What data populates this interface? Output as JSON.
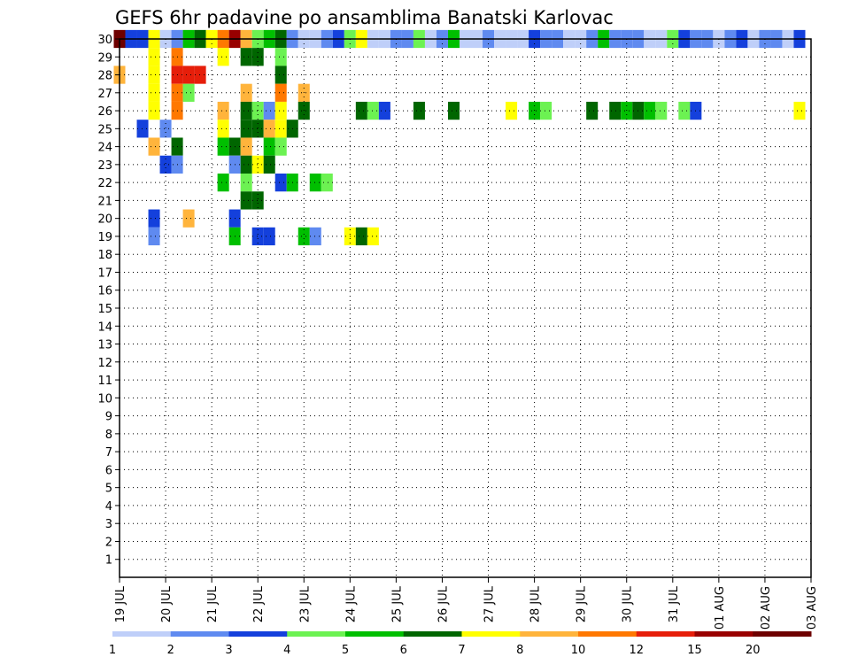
{
  "chart_data": {
    "type": "heatmap",
    "title": "GEFS 6hr padavine po ansamblima Banatski Karlovac",
    "members": [
      1,
      2,
      3,
      4,
      5,
      6,
      7,
      8,
      9,
      10,
      11,
      12,
      13,
      14,
      15,
      16,
      17,
      18,
      19,
      20,
      21,
      22,
      23,
      24,
      25,
      26,
      27,
      28,
      29,
      30
    ],
    "x_tick_labels": [
      "19 JUL",
      "20 JUL",
      "21 JUL",
      "22 JUL",
      "23 JUL",
      "24 JUL",
      "25 JUL",
      "26 JUL",
      "27 JUL",
      "28 JUL",
      "29 JUL",
      "30 JUL",
      "31 JUL",
      "01 AUG",
      "02 AUG",
      "03 AUG"
    ],
    "x_range_days": [
      0,
      15
    ],
    "y_range": [
      0,
      30
    ],
    "grid": true,
    "colorbar": {
      "colors": [
        "#bfcff9",
        "#5f8af0",
        "#1440dc",
        "#6cf252",
        "#00bf00",
        "#006600",
        "#ffff00",
        "#ffb43c",
        "#ff7800",
        "#e61e0a",
        "#990000",
        "#6e0000"
      ],
      "tick_labels": [
        "1",
        "2",
        "3",
        "4",
        "5",
        "6",
        "7",
        "8",
        "10",
        "12",
        "15",
        "20"
      ]
    },
    "cells": [
      [
        0.0,
        30,
        11
      ],
      [
        0.25,
        30,
        2
      ],
      [
        0.5,
        30,
        2
      ],
      [
        0.75,
        30,
        6
      ],
      [
        1.0,
        30,
        0
      ],
      [
        1.25,
        30,
        1
      ],
      [
        1.5,
        30,
        4
      ],
      [
        1.75,
        30,
        5
      ],
      [
        2.0,
        30,
        6
      ],
      [
        2.25,
        30,
        8
      ],
      [
        2.5,
        30,
        10
      ],
      [
        2.75,
        30,
        7
      ],
      [
        3.0,
        30,
        3
      ],
      [
        3.25,
        30,
        4
      ],
      [
        3.5,
        30,
        5
      ],
      [
        3.75,
        30,
        1
      ],
      [
        4.0,
        30,
        0
      ],
      [
        4.25,
        30,
        0
      ],
      [
        4.5,
        30,
        1
      ],
      [
        4.75,
        30,
        2
      ],
      [
        5.0,
        30,
        3
      ],
      [
        5.25,
        30,
        6
      ],
      [
        5.5,
        30,
        0
      ],
      [
        5.75,
        30,
        0
      ],
      [
        6.0,
        30,
        1
      ],
      [
        6.25,
        30,
        1
      ],
      [
        6.5,
        30,
        3
      ],
      [
        6.75,
        30,
        0
      ],
      [
        7.0,
        30,
        1
      ],
      [
        7.25,
        30,
        4
      ],
      [
        7.5,
        30,
        0
      ],
      [
        7.75,
        30,
        0
      ],
      [
        8.0,
        30,
        1
      ],
      [
        8.25,
        30,
        0
      ],
      [
        8.5,
        30,
        0
      ],
      [
        8.75,
        30,
        0
      ],
      [
        9.0,
        30,
        2
      ],
      [
        9.25,
        30,
        1
      ],
      [
        9.5,
        30,
        1
      ],
      [
        9.75,
        30,
        0
      ],
      [
        10.0,
        30,
        0
      ],
      [
        10.25,
        30,
        1
      ],
      [
        10.5,
        30,
        4
      ],
      [
        10.75,
        30,
        1
      ],
      [
        11.0,
        30,
        1
      ],
      [
        11.25,
        30,
        1
      ],
      [
        11.5,
        30,
        0
      ],
      [
        11.75,
        30,
        0
      ],
      [
        12.0,
        30,
        3
      ],
      [
        12.25,
        30,
        2
      ],
      [
        12.5,
        30,
        1
      ],
      [
        12.75,
        30,
        1
      ],
      [
        13.0,
        30,
        0
      ],
      [
        13.25,
        30,
        1
      ],
      [
        13.5,
        30,
        2
      ],
      [
        13.75,
        30,
        0
      ],
      [
        14.0,
        30,
        1
      ],
      [
        14.25,
        30,
        1
      ],
      [
        14.5,
        30,
        0
      ],
      [
        14.75,
        30,
        2
      ],
      [
        0.75,
        29,
        6
      ],
      [
        1.25,
        29,
        8
      ],
      [
        2.25,
        29,
        6
      ],
      [
        2.75,
        29,
        5
      ],
      [
        3.0,
        29,
        5
      ],
      [
        3.5,
        29,
        3
      ],
      [
        0.0,
        28,
        7
      ],
      [
        0.75,
        28,
        6
      ],
      [
        1.25,
        28,
        9
      ],
      [
        1.5,
        28,
        9
      ],
      [
        1.75,
        28,
        9
      ],
      [
        3.5,
        28,
        5
      ],
      [
        0.75,
        27,
        6
      ],
      [
        1.25,
        27,
        8
      ],
      [
        1.5,
        27,
        3
      ],
      [
        2.75,
        27,
        7
      ],
      [
        3.5,
        27,
        8
      ],
      [
        4.0,
        27,
        7
      ],
      [
        0.75,
        26,
        6
      ],
      [
        1.25,
        26,
        8
      ],
      [
        2.25,
        26,
        7
      ],
      [
        2.75,
        26,
        5
      ],
      [
        3.0,
        26,
        3
      ],
      [
        3.25,
        26,
        1
      ],
      [
        3.5,
        26,
        6
      ],
      [
        4.0,
        26,
        5
      ],
      [
        5.25,
        26,
        5
      ],
      [
        5.5,
        26,
        3
      ],
      [
        5.75,
        26,
        2
      ],
      [
        6.5,
        26,
        5
      ],
      [
        7.25,
        26,
        5
      ],
      [
        8.5,
        26,
        6
      ],
      [
        9.0,
        26,
        4
      ],
      [
        9.25,
        26,
        3
      ],
      [
        10.25,
        26,
        5
      ],
      [
        10.75,
        26,
        5
      ],
      [
        11.0,
        26,
        4
      ],
      [
        11.25,
        26,
        5
      ],
      [
        11.5,
        26,
        4
      ],
      [
        11.75,
        26,
        3
      ],
      [
        12.25,
        26,
        3
      ],
      [
        12.5,
        26,
        2
      ],
      [
        14.75,
        26,
        6
      ],
      [
        0.5,
        25,
        2
      ],
      [
        1.0,
        25,
        1
      ],
      [
        2.25,
        25,
        6
      ],
      [
        2.75,
        25,
        5
      ],
      [
        3.0,
        25,
        5
      ],
      [
        3.25,
        25,
        7
      ],
      [
        3.5,
        25,
        6
      ],
      [
        3.75,
        25,
        5
      ],
      [
        0.75,
        24,
        7
      ],
      [
        1.25,
        24,
        5
      ],
      [
        2.25,
        24,
        4
      ],
      [
        2.5,
        24,
        5
      ],
      [
        2.75,
        24,
        7
      ],
      [
        3.25,
        24,
        4
      ],
      [
        3.5,
        24,
        3
      ],
      [
        1.0,
        23,
        2
      ],
      [
        1.25,
        23,
        1
      ],
      [
        2.5,
        23,
        1
      ],
      [
        2.75,
        23,
        5
      ],
      [
        3.0,
        23,
        6
      ],
      [
        3.25,
        23,
        5
      ],
      [
        2.25,
        22,
        4
      ],
      [
        2.75,
        22,
        3
      ],
      [
        3.5,
        22,
        2
      ],
      [
        3.75,
        22,
        4
      ],
      [
        4.25,
        22,
        4
      ],
      [
        4.5,
        22,
        3
      ],
      [
        2.75,
        21,
        5
      ],
      [
        3.0,
        21,
        5
      ],
      [
        0.75,
        20,
        2
      ],
      [
        1.5,
        20,
        7
      ],
      [
        2.5,
        20,
        2
      ],
      [
        0.75,
        19,
        1
      ],
      [
        2.5,
        19,
        4
      ],
      [
        3.0,
        19,
        2
      ],
      [
        3.25,
        19,
        2
      ],
      [
        4.0,
        19,
        4
      ],
      [
        4.25,
        19,
        1
      ],
      [
        5.0,
        19,
        6
      ],
      [
        5.25,
        19,
        5
      ],
      [
        5.5,
        19,
        6
      ]
    ]
  }
}
